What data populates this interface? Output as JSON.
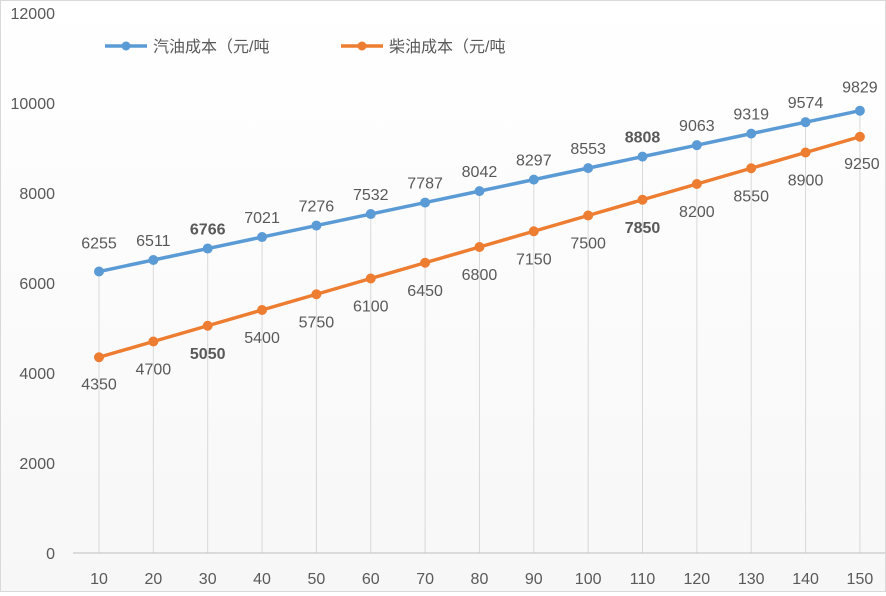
{
  "chart_data": {
    "type": "line",
    "title": "",
    "xlabel": "",
    "ylabel": "",
    "categories": [
      "10",
      "20",
      "30",
      "40",
      "50",
      "60",
      "70",
      "80",
      "90",
      "100",
      "110",
      "120",
      "130",
      "140",
      "150"
    ],
    "ylim": [
      0,
      12000
    ],
    "yticks": [
      "0",
      "2000",
      "4000",
      "6000",
      "8000",
      "10000",
      "12000"
    ],
    "legend_position": "top-left",
    "series": [
      {
        "name": "汽油成本（元/吨",
        "color": "#5b9bd5",
        "values": [
          6255,
          6511,
          6766,
          7021,
          7276,
          7532,
          7787,
          8042,
          8297,
          8553,
          8808,
          9063,
          9319,
          9574,
          9829
        ],
        "labels": [
          "6255",
          "6511",
          "6766",
          "7021",
          "7276",
          "7532",
          "7787",
          "8042",
          "8297",
          "8553",
          "8808",
          "9063",
          "9319",
          "9574",
          "9829"
        ],
        "label_position": "above",
        "highlight_indices": [
          2,
          10
        ]
      },
      {
        "name": "柴油成本（元/吨",
        "color": "#ed7d31",
        "values": [
          4350,
          4700,
          5050,
          5400,
          5750,
          6100,
          6450,
          6800,
          7150,
          7500,
          7850,
          8200,
          8550,
          8900,
          9250
        ],
        "labels": [
          "4350",
          "4700",
          "5050",
          "5400",
          "5750",
          "6100",
          "6450",
          "6800",
          "7150",
          "7500",
          "7850",
          "8200",
          "8550",
          "8900",
          "9250"
        ],
        "label_position": "below",
        "highlight_indices": [
          2,
          10
        ]
      }
    ],
    "highlight_color": "#ff0000",
    "gridlines": "vertical"
  }
}
